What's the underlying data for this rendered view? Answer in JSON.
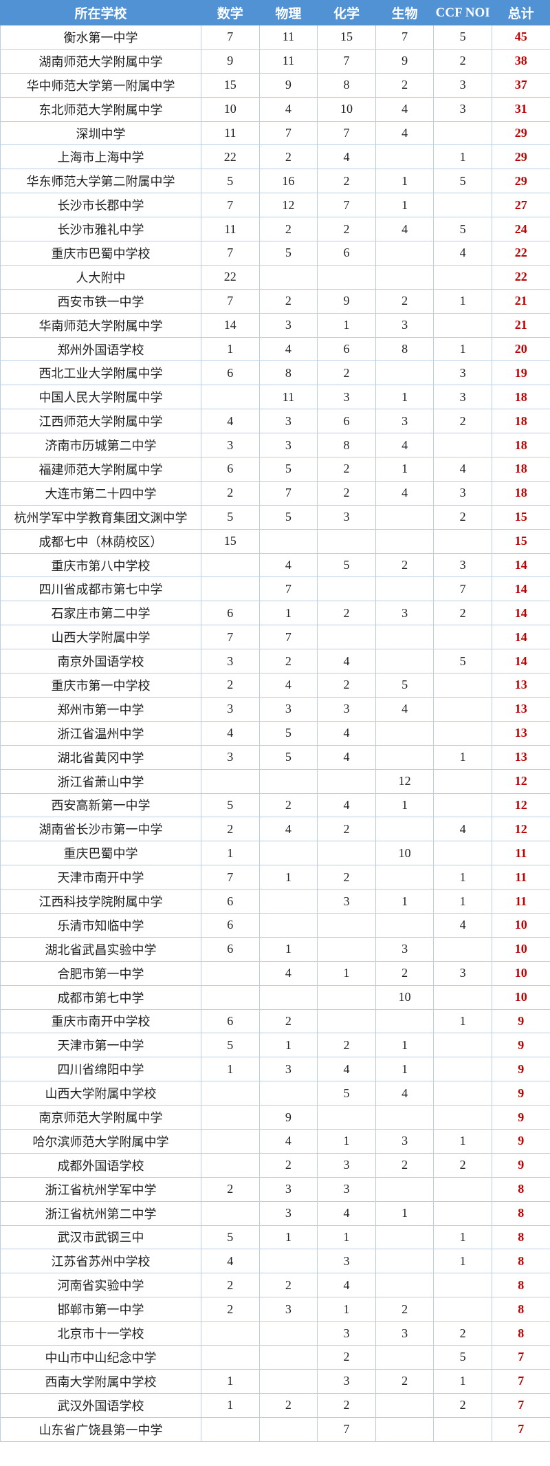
{
  "headers": [
    "所在学校",
    "数学",
    "物理",
    "化学",
    "生物",
    "CCF NOI",
    "总计"
  ],
  "colors": {
    "header_bg": "#5192d5",
    "total_text": "#c00000",
    "border": "#b9cfe6"
  },
  "rows": [
    [
      "衡水第一中学",
      "7",
      "11",
      "15",
      "7",
      "5",
      "45"
    ],
    [
      "湖南师范大学附属中学",
      "9",
      "11",
      "7",
      "9",
      "2",
      "38"
    ],
    [
      "华中师范大学第一附属中学",
      "15",
      "9",
      "8",
      "2",
      "3",
      "37"
    ],
    [
      "东北师范大学附属中学",
      "10",
      "4",
      "10",
      "4",
      "3",
      "31"
    ],
    [
      "深圳中学",
      "11",
      "7",
      "7",
      "4",
      "",
      "29"
    ],
    [
      "上海市上海中学",
      "22",
      "2",
      "4",
      "",
      "1",
      "29"
    ],
    [
      "华东师范大学第二附属中学",
      "5",
      "16",
      "2",
      "1",
      "5",
      "29"
    ],
    [
      "长沙市长郡中学",
      "7",
      "12",
      "7",
      "1",
      "",
      "27"
    ],
    [
      "长沙市雅礼中学",
      "11",
      "2",
      "2",
      "4",
      "5",
      "24"
    ],
    [
      "重庆市巴蜀中学校",
      "7",
      "5",
      "6",
      "",
      "4",
      "22"
    ],
    [
      "人大附中",
      "22",
      "",
      "",
      "",
      "",
      "22"
    ],
    [
      "西安市铁一中学",
      "7",
      "2",
      "9",
      "2",
      "1",
      "21"
    ],
    [
      "华南师范大学附属中学",
      "14",
      "3",
      "1",
      "3",
      "",
      "21"
    ],
    [
      "郑州外国语学校",
      "1",
      "4",
      "6",
      "8",
      "1",
      "20"
    ],
    [
      "西北工业大学附属中学",
      "6",
      "8",
      "2",
      "",
      "3",
      "19"
    ],
    [
      "中国人民大学附属中学",
      "",
      "11",
      "3",
      "1",
      "3",
      "18"
    ],
    [
      "江西师范大学附属中学",
      "4",
      "3",
      "6",
      "3",
      "2",
      "18"
    ],
    [
      "济南市历城第二中学",
      "3",
      "3",
      "8",
      "4",
      "",
      "18"
    ],
    [
      "福建师范大学附属中学",
      "6",
      "5",
      "2",
      "1",
      "4",
      "18"
    ],
    [
      "大连市第二十四中学",
      "2",
      "7",
      "2",
      "4",
      "3",
      "18"
    ],
    [
      "杭州学军中学教育集团文渊中学",
      "5",
      "5",
      "3",
      "",
      "2",
      "15"
    ],
    [
      "成都七中（林荫校区）",
      "15",
      "",
      "",
      "",
      "",
      "15"
    ],
    [
      "重庆市第八中学校",
      "",
      "4",
      "5",
      "2",
      "3",
      "14"
    ],
    [
      "四川省成都市第七中学",
      "",
      "7",
      "",
      "",
      "7",
      "14"
    ],
    [
      "石家庄市第二中学",
      "6",
      "1",
      "2",
      "3",
      "2",
      "14"
    ],
    [
      "山西大学附属中学",
      "7",
      "7",
      "",
      "",
      "",
      "14"
    ],
    [
      "南京外国语学校",
      "3",
      "2",
      "4",
      "",
      "5",
      "14"
    ],
    [
      "重庆市第一中学校",
      "2",
      "4",
      "2",
      "5",
      "",
      "13"
    ],
    [
      "郑州市第一中学",
      "3",
      "3",
      "3",
      "4",
      "",
      "13"
    ],
    [
      "浙江省温州中学",
      "4",
      "5",
      "4",
      "",
      "",
      "13"
    ],
    [
      "湖北省黄冈中学",
      "3",
      "5",
      "4",
      "",
      "1",
      "13"
    ],
    [
      "浙江省萧山中学",
      "",
      "",
      "",
      "12",
      "",
      "12"
    ],
    [
      "西安高新第一中学",
      "5",
      "2",
      "4",
      "1",
      "",
      "12"
    ],
    [
      "湖南省长沙市第一中学",
      "2",
      "4",
      "2",
      "",
      "4",
      "12"
    ],
    [
      "重庆巴蜀中学",
      "1",
      "",
      "",
      "10",
      "",
      "11"
    ],
    [
      "天津市南开中学",
      "7",
      "1",
      "2",
      "",
      "1",
      "11"
    ],
    [
      "江西科技学院附属中学",
      "6",
      "",
      "3",
      "1",
      "1",
      "11"
    ],
    [
      "乐清市知临中学",
      "6",
      "",
      "",
      "",
      "4",
      "10"
    ],
    [
      "湖北省武昌实验中学",
      "6",
      "1",
      "",
      "3",
      "",
      "10"
    ],
    [
      "合肥市第一中学",
      "",
      "4",
      "1",
      "2",
      "3",
      "10"
    ],
    [
      "成都市第七中学",
      "",
      "",
      "",
      "10",
      "",
      "10"
    ],
    [
      "重庆市南开中学校",
      "6",
      "2",
      "",
      "",
      "1",
      "9"
    ],
    [
      "天津市第一中学",
      "5",
      "1",
      "2",
      "1",
      "",
      "9"
    ],
    [
      "四川省绵阳中学",
      "1",
      "3",
      "4",
      "1",
      "",
      "9"
    ],
    [
      "山西大学附属中学校",
      "",
      "",
      "5",
      "4",
      "",
      "9"
    ],
    [
      "南京师范大学附属中学",
      "",
      "9",
      "",
      "",
      "",
      "9"
    ],
    [
      "哈尔滨师范大学附属中学",
      "",
      "4",
      "1",
      "3",
      "1",
      "9"
    ],
    [
      "成都外国语学校",
      "",
      "2",
      "3",
      "2",
      "2",
      "9"
    ],
    [
      "浙江省杭州学军中学",
      "2",
      "3",
      "3",
      "",
      "",
      "8"
    ],
    [
      "浙江省杭州第二中学",
      "",
      "3",
      "4",
      "1",
      "",
      "8"
    ],
    [
      "武汉市武钢三中",
      "5",
      "1",
      "1",
      "",
      "1",
      "8"
    ],
    [
      "江苏省苏州中学校",
      "4",
      "",
      "3",
      "",
      "1",
      "8"
    ],
    [
      "河南省实验中学",
      "2",
      "2",
      "4",
      "",
      "",
      "8"
    ],
    [
      "邯郸市第一中学",
      "2",
      "3",
      "1",
      "2",
      "",
      "8"
    ],
    [
      "北京市十一学校",
      "",
      "",
      "3",
      "3",
      "2",
      "8"
    ],
    [
      "中山市中山纪念中学",
      "",
      "",
      "2",
      "",
      "5",
      "7"
    ],
    [
      "西南大学附属中学校",
      "1",
      "",
      "3",
      "2",
      "1",
      "7"
    ],
    [
      "武汉外国语学校",
      "1",
      "2",
      "2",
      "",
      "2",
      "7"
    ],
    [
      "山东省广饶县第一中学",
      "",
      "",
      "7",
      "",
      "",
      "7"
    ]
  ]
}
